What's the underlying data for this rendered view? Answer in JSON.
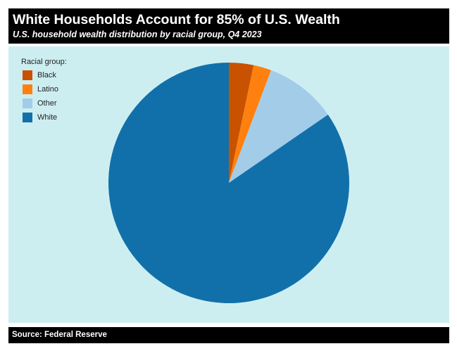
{
  "header": {
    "title": "White Households Account for 85% of U.S. Wealth",
    "subtitle": "U.S. household wealth distribution by racial group, Q4 2023"
  },
  "legend": {
    "title": "Racial group:",
    "items": [
      {
        "label": "Black",
        "color": "#c85200"
      },
      {
        "label": "Latino",
        "color": "#ff800e"
      },
      {
        "label": "Other",
        "color": "#a3cce9"
      },
      {
        "label": "White",
        "color": "#1170aa"
      }
    ]
  },
  "footer": {
    "source": "Source: Federal Reserve"
  },
  "chart_data": {
    "type": "pie",
    "title": "White Households Account for 85% of U.S. Wealth",
    "subtitle": "U.S. household wealth distribution by racial group, Q4 2023",
    "categories": [
      "Black",
      "Latino",
      "Other",
      "White"
    ],
    "values": [
      3.3,
      2.4,
      9.7,
      84.6
    ],
    "unit": "%",
    "colors": [
      "#c85200",
      "#ff800e",
      "#a3cce9",
      "#1170aa"
    ],
    "start_angle": "12 o'clock, clockwise",
    "legend_title": "Racial group:",
    "legend_position": "top-left",
    "source": "Source: Federal Reserve",
    "background": "#cdeef1"
  }
}
